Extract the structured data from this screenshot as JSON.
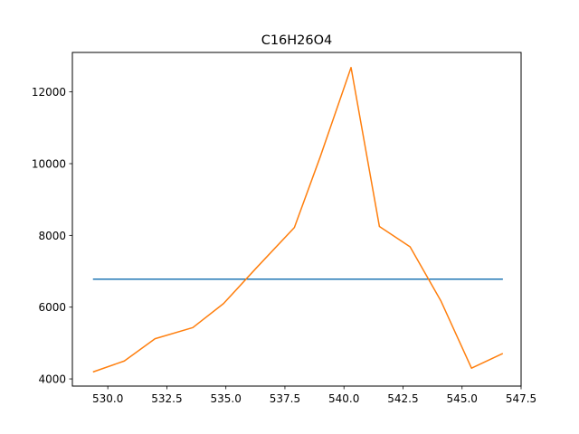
{
  "chart_data": {
    "type": "line",
    "title": "C16H26O4",
    "xlabel": "",
    "ylabel": "",
    "xlim": [
      528.5,
      547.5
    ],
    "ylim": [
      3800,
      13100
    ],
    "xticks": [
      530.0,
      532.5,
      535.0,
      537.5,
      540.0,
      542.5,
      545.0,
      547.5
    ],
    "xtick_labels": [
      "530.0",
      "532.5",
      "535.0",
      "537.5",
      "540.0",
      "542.5",
      "545.0",
      "547.5"
    ],
    "yticks": [
      4000,
      6000,
      8000,
      10000,
      12000
    ],
    "ytick_labels": [
      "4000",
      "6000",
      "8000",
      "10000",
      "12000"
    ],
    "grid": false,
    "series": [
      {
        "color": "#1f77b4",
        "x": [
          529.4,
          546.7
        ],
        "y": [
          6780,
          6780
        ]
      },
      {
        "color": "#ff7f0e",
        "x": [
          529.4,
          530.7,
          532.0,
          533.6,
          534.9,
          536.3,
          537.9,
          539.0,
          540.3,
          541.5,
          542.8,
          544.1,
          545.4,
          546.7
        ],
        "y": [
          4200,
          4500,
          5120,
          5430,
          6100,
          7100,
          8220,
          10200,
          12680,
          8250,
          7680,
          6180,
          4300,
          4700
        ]
      }
    ]
  }
}
